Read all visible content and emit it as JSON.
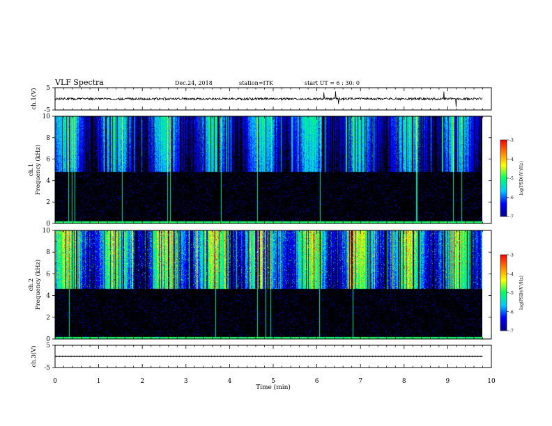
{
  "header": {
    "title": "VLF Spectra",
    "date": "Dec.24, 2018",
    "station": "station=ITK",
    "start": "start  UT =   6 : 30: 0"
  },
  "chart_data": [
    {
      "type": "line",
      "panel": "ch1-waveform",
      "ylabel": "ch.1(V)",
      "ylim": [
        -5,
        5
      ],
      "yticks": [
        5,
        -5
      ],
      "xlim": [
        0,
        10
      ],
      "baseline": 0,
      "note_series": "noisy waveform with occasional spikes"
    },
    {
      "type": "heatmap",
      "panel": "ch1-spectrogram",
      "ylabel": "ch.1 Frequency (kHz)",
      "ylim": [
        0,
        10
      ],
      "yticks": [
        0,
        2,
        4,
        6,
        8,
        10
      ],
      "xlim": [
        0,
        10
      ],
      "data_extent_min": 9.8,
      "cutoff_khz": 4.8,
      "colorbar": {
        "label": "log(PSD)(V²/Hz)",
        "ticks": [
          -3,
          -4,
          -5,
          -6,
          -7
        ],
        "range": [
          -7,
          -3
        ]
      }
    },
    {
      "type": "heatmap",
      "panel": "ch2-spectrogram",
      "ylabel": "ch.2 Frequency (kHz)",
      "ylim": [
        0,
        10
      ],
      "yticks": [
        0,
        2,
        4,
        6,
        8,
        10
      ],
      "xlim": [
        0,
        10
      ],
      "data_extent_min": 9.8,
      "cutoff_khz": 4.6,
      "colorbar": {
        "label": "log(PSD)(V²/Hz)",
        "ticks": [
          -3,
          -4,
          -5,
          -6,
          -7
        ],
        "range": [
          -7,
          -3
        ]
      }
    },
    {
      "type": "line",
      "panel": "ch3-waveform",
      "ylabel": "ch.3(V)",
      "ylim": [
        -5,
        5
      ],
      "yticks": [
        5,
        -5
      ],
      "xlim": [
        0,
        10
      ],
      "baseline": 0,
      "note_series": "flat trace near zero"
    },
    {
      "type": "axis",
      "xlabel": "Time  (min)",
      "xticks": [
        0,
        1,
        2,
        3,
        4,
        5,
        6,
        7,
        8,
        9,
        10
      ]
    }
  ],
  "colors": {
    "colormap": [
      "#000000",
      "#000088",
      "#0000ff",
      "#00c8ff",
      "#00ff64",
      "#ffff00",
      "#ff8000",
      "#ff0000",
      "#ffffff"
    ]
  }
}
